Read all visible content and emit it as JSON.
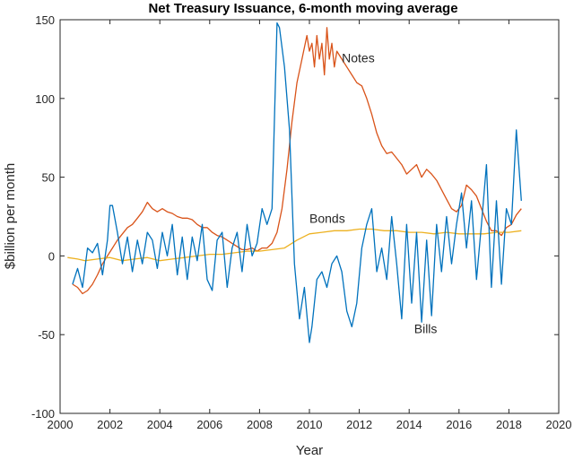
{
  "chart_data": {
    "type": "line",
    "title": "Net Treasury Issuance, 6-month moving average",
    "xlabel": "Year",
    "ylabel": "$billion per month",
    "xlim": [
      2000,
      2020
    ],
    "ylim": [
      -100,
      150
    ],
    "xticks": [
      "2000",
      "2002",
      "2004",
      "2006",
      "2008",
      "2010",
      "2012",
      "2014",
      "2016",
      "2018",
      "2020"
    ],
    "yticks": [
      "-100",
      "-50",
      "0",
      "50",
      "100",
      "150"
    ],
    "grid": false,
    "legend": "none",
    "annotations": [
      {
        "text": "Notes",
        "x": 2011.3,
        "y": 123
      },
      {
        "text": "Bonds",
        "x": 2010.0,
        "y": 21
      },
      {
        "text": "Bills",
        "x": 2014.2,
        "y": -49
      }
    ],
    "series": [
      {
        "name": "Notes",
        "color": "#d95319",
        "x": [
          2000.5,
          2000.7,
          2000.9,
          2001.1,
          2001.3,
          2001.5,
          2001.7,
          2001.9,
          2002.1,
          2002.3,
          2002.5,
          2002.7,
          2002.9,
          2003.1,
          2003.3,
          2003.5,
          2003.7,
          2003.9,
          2004.1,
          2004.3,
          2004.5,
          2004.7,
          2004.9,
          2005.1,
          2005.3,
          2005.5,
          2005.7,
          2005.9,
          2006.1,
          2006.3,
          2006.5,
          2006.7,
          2006.9,
          2007.1,
          2007.3,
          2007.5,
          2007.7,
          2007.9,
          2008.1,
          2008.3,
          2008.5,
          2008.7,
          2008.9,
          2009.1,
          2009.3,
          2009.5,
          2009.7,
          2009.9,
          2010.0,
          2010.1,
          2010.2,
          2010.3,
          2010.4,
          2010.5,
          2010.6,
          2010.7,
          2010.8,
          2010.9,
          2011.0,
          2011.1,
          2011.3,
          2011.5,
          2011.7,
          2011.9,
          2012.1,
          2012.3,
          2012.5,
          2012.7,
          2012.9,
          2013.1,
          2013.3,
          2013.5,
          2013.7,
          2013.9,
          2014.1,
          2014.3,
          2014.5,
          2014.7,
          2014.9,
          2015.1,
          2015.3,
          2015.5,
          2015.7,
          2015.9,
          2016.1,
          2016.3,
          2016.5,
          2016.7,
          2016.9,
          2017.1,
          2017.3,
          2017.5,
          2017.7,
          2017.9,
          2018.1,
          2018.3,
          2018.5
        ],
        "y": [
          -18,
          -20,
          -24,
          -22,
          -18,
          -12,
          -5,
          0,
          5,
          10,
          14,
          18,
          20,
          24,
          28,
          34,
          30,
          28,
          30,
          28,
          27,
          25,
          24,
          24,
          23,
          20,
          18,
          18,
          15,
          13,
          12,
          10,
          8,
          6,
          4,
          4,
          5,
          3,
          5,
          5,
          8,
          15,
          30,
          55,
          85,
          110,
          125,
          140,
          130,
          135,
          120,
          140,
          125,
          135,
          115,
          145,
          125,
          135,
          120,
          130,
          125,
          120,
          115,
          110,
          108,
          100,
          90,
          78,
          70,
          65,
          66,
          62,
          58,
          52,
          55,
          58,
          50,
          55,
          52,
          48,
          42,
          36,
          30,
          28,
          32,
          45,
          42,
          38,
          30,
          22,
          16,
          16,
          13,
          18,
          20,
          26,
          30
        ]
      },
      {
        "name": "Bonds",
        "color": "#edb120",
        "x": [
          2000.3,
          2000.7,
          2001.0,
          2001.5,
          2002.0,
          2002.5,
          2003.0,
          2003.5,
          2004.0,
          2004.5,
          2005.0,
          2005.5,
          2006.0,
          2006.5,
          2007.0,
          2007.5,
          2008.0,
          2008.5,
          2009.0,
          2009.5,
          2010.0,
          2010.5,
          2011.0,
          2011.5,
          2012.0,
          2012.5,
          2013.0,
          2013.5,
          2014.0,
          2014.5,
          2015.0,
          2015.5,
          2016.0,
          2016.5,
          2017.0,
          2017.5,
          2018.0,
          2018.5
        ],
        "y": [
          -1,
          -2,
          -3,
          -2,
          -1,
          -3,
          -2,
          -1,
          -3,
          -2,
          -1,
          0,
          1,
          1,
          2,
          3,
          3,
          4,
          5,
          10,
          14,
          15,
          16,
          16,
          17,
          17,
          16,
          16,
          15,
          15,
          14,
          15,
          14,
          14,
          14,
          15,
          15,
          16
        ]
      },
      {
        "name": "Bills",
        "color": "#0072bd",
        "x": [
          2000.5,
          2000.7,
          2000.9,
          2001.1,
          2001.3,
          2001.5,
          2001.7,
          2001.9,
          2002.0,
          2002.1,
          2002.3,
          2002.5,
          2002.7,
          2002.9,
          2003.1,
          2003.3,
          2003.5,
          2003.7,
          2003.9,
          2004.1,
          2004.3,
          2004.5,
          2004.7,
          2004.9,
          2005.1,
          2005.3,
          2005.5,
          2005.7,
          2005.9,
          2006.1,
          2006.3,
          2006.5,
          2006.7,
          2006.9,
          2007.1,
          2007.3,
          2007.5,
          2007.7,
          2007.9,
          2008.1,
          2008.3,
          2008.5,
          2008.7,
          2008.8,
          2009.0,
          2009.2,
          2009.4,
          2009.6,
          2009.8,
          2010.0,
          2010.1,
          2010.3,
          2010.5,
          2010.7,
          2010.9,
          2011.1,
          2011.3,
          2011.5,
          2011.7,
          2011.9,
          2012.1,
          2012.3,
          2012.5,
          2012.7,
          2012.9,
          2013.1,
          2013.3,
          2013.5,
          2013.7,
          2013.9,
          2014.1,
          2014.3,
          2014.5,
          2014.7,
          2014.9,
          2015.1,
          2015.3,
          2015.5,
          2015.7,
          2015.9,
          2016.1,
          2016.3,
          2016.5,
          2016.7,
          2016.9,
          2017.1,
          2017.3,
          2017.5,
          2017.7,
          2017.9,
          2018.1,
          2018.3,
          2018.5
        ],
        "y": [
          -18,
          -8,
          -20,
          5,
          2,
          8,
          -12,
          10,
          32,
          32,
          15,
          -5,
          12,
          -10,
          10,
          -5,
          15,
          10,
          -8,
          15,
          0,
          20,
          -12,
          12,
          -15,
          12,
          -3,
          20,
          -15,
          -22,
          10,
          15,
          -20,
          5,
          15,
          -10,
          20,
          0,
          8,
          30,
          20,
          30,
          148,
          145,
          120,
          80,
          -5,
          -40,
          -20,
          -55,
          -45,
          -15,
          -10,
          -20,
          -5,
          0,
          -10,
          -35,
          -45,
          -30,
          5,
          20,
          30,
          -10,
          5,
          -15,
          25,
          -5,
          -40,
          20,
          -30,
          15,
          -42,
          10,
          -38,
          20,
          -10,
          25,
          -5,
          20,
          40,
          5,
          35,
          -15,
          20,
          58,
          -20,
          35,
          -18,
          30,
          20,
          80,
          35
        ]
      }
    ]
  }
}
